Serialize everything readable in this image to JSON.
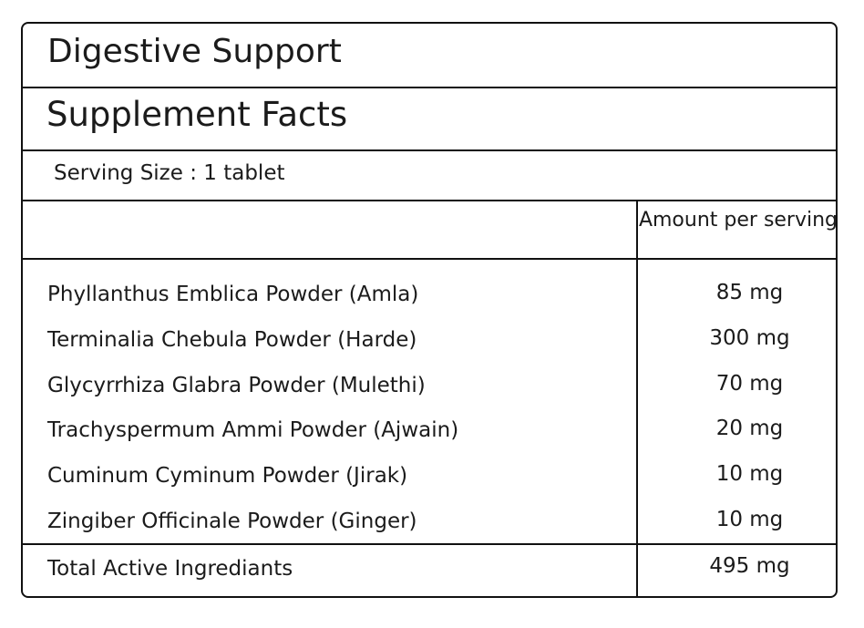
{
  "product_name": "Digestive Support",
  "panel_title": "Supplement Facts",
  "serving_size": "Serving Size : 1 tablet",
  "amount_header": "Amount per serving",
  "ingredients": [
    {
      "name": "Phyllanthus Emblica Powder (Amla)",
      "amount": "85 mg"
    },
    {
      "name": "Terminalia Chebula Powder (Harde)",
      "amount": "300 mg"
    },
    {
      "name": "Glycyrrhiza Glabra Powder (Mulethi)",
      "amount": "70 mg"
    },
    {
      "name": "Trachyspermum Ammi Powder (Ajwain)",
      "amount": "20 mg"
    },
    {
      "name": "Cuminum Cyminum Powder (Jirak)",
      "amount": "10 mg"
    },
    {
      "name": "Zingiber Officinale Powder (Ginger)",
      "amount": "10 mg"
    }
  ],
  "total": {
    "label": "Total Active Ingrediants",
    "amount": "495 mg"
  }
}
